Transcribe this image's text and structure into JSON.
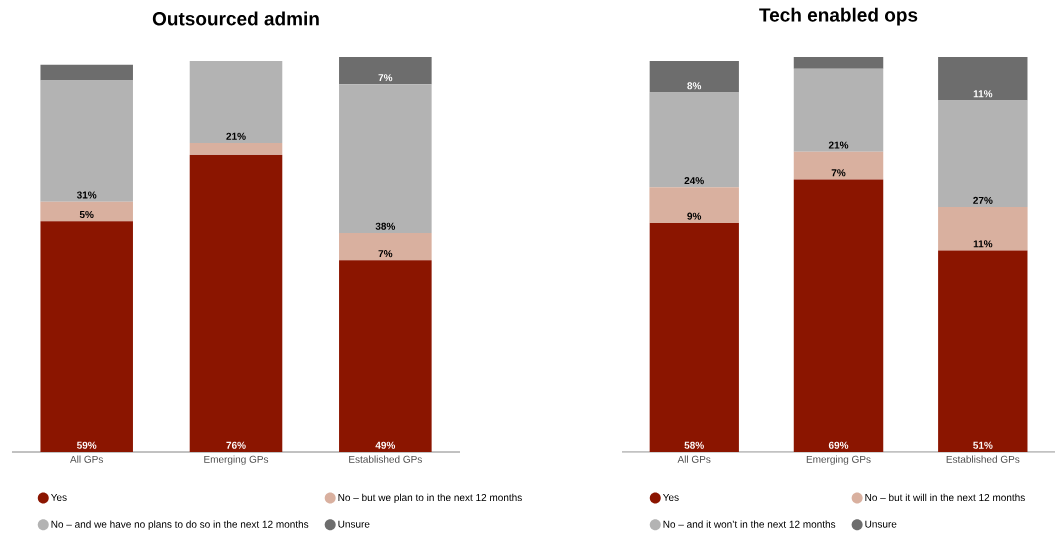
{
  "chart_data": [
    {
      "type": "bar",
      "title": "Outsourced admin",
      "stacked": true,
      "legend": "bottom",
      "tick_labels": "x",
      "categories": [
        "All GPs",
        "Emerging GPs",
        "Established GPs"
      ],
      "series": [
        {
          "name": "Yes",
          "color": "#8b1500",
          "values": [
            59,
            76,
            49
          ],
          "value_labels": [
            "59%",
            "76%",
            "49%"
          ]
        },
        {
          "name": "No – but we plan to in the next 12 months",
          "color": "#d9b09f",
          "values": [
            5,
            3,
            7
          ],
          "value_labels": [
            "5%",
            null,
            "7%"
          ]
        },
        {
          "name": "No – and we have no plans to do so in the next 12 months",
          "color": "#b3b3b3",
          "values": [
            31,
            21,
            38
          ],
          "value_labels": [
            "31%",
            "21%",
            "38%"
          ]
        },
        {
          "name": "Unsure",
          "color": "#6d6d6d",
          "values": [
            4,
            0,
            7
          ],
          "value_labels": [
            null,
            null,
            "7%"
          ]
        }
      ]
    },
    {
      "type": "bar",
      "title": "Tech enabled ops",
      "stacked": true,
      "legend": "bottom",
      "tick_labels": "x",
      "categories": [
        "All GPs",
        "Emerging GPs",
        "Established GPs"
      ],
      "series": [
        {
          "name": "Yes",
          "color": "#8b1500",
          "values": [
            58,
            69,
            51
          ],
          "value_labels": [
            "58%",
            "69%",
            "51%"
          ]
        },
        {
          "name": "No – but it will in the next 12 months",
          "color": "#d9b09f",
          "values": [
            9,
            7,
            11
          ],
          "value_labels": [
            "9%",
            "7%",
            "11%"
          ]
        },
        {
          "name": "No – and it won’t in the next 12 months",
          "color": "#b3b3b3",
          "values": [
            24,
            21,
            27
          ],
          "value_labels": [
            "24%",
            "21%",
            "27%"
          ]
        },
        {
          "name": "Unsure",
          "color": "#6d6d6d",
          "values": [
            8,
            3,
            11
          ],
          "value_labels": [
            "8%",
            null,
            "11%"
          ]
        }
      ]
    }
  ]
}
